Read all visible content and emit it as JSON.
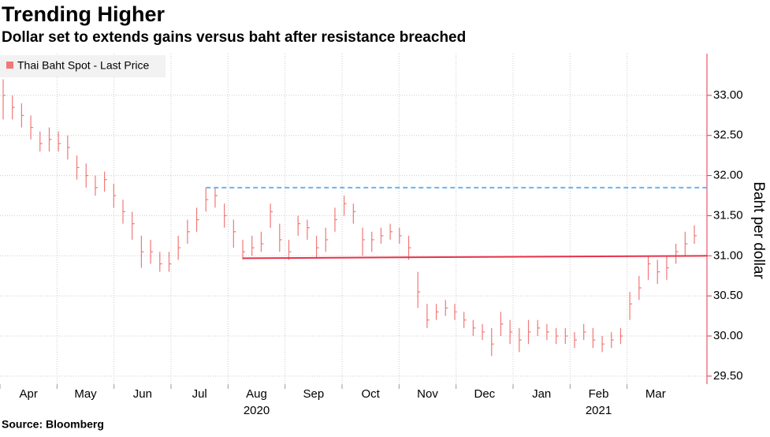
{
  "chart_data": {
    "type": "ohlc",
    "title": "Trending Higher",
    "subtitle": "Dollar set to extends gains versus baht after resistance breached",
    "source": "Source: Bloomberg",
    "y_label": "Baht per dollar",
    "series": [
      {
        "name": "Thai Baht Spot - Last Price",
        "color": "#f07878",
        "close": [
          33.0,
          32.85,
          32.75,
          32.6,
          32.4,
          32.45,
          32.4,
          32.35,
          32.1,
          32.0,
          31.85,
          31.95,
          31.75,
          31.55,
          31.4,
          31.05,
          31.05,
          30.9,
          30.9,
          31.1,
          31.3,
          31.45,
          31.7,
          31.75,
          31.5,
          31.3,
          31.05,
          31.1,
          31.15,
          31.55,
          31.2,
          31.05,
          31.4,
          31.35,
          31.1,
          31.2,
          31.45,
          31.65,
          31.55,
          31.2,
          31.2,
          31.25,
          31.3,
          31.25,
          31.1,
          30.55,
          30.2,
          30.3,
          30.35,
          30.3,
          30.2,
          30.1,
          30.05,
          29.9,
          30.15,
          30.05,
          29.95,
          30.05,
          30.1,
          30.05,
          30.0,
          30.0,
          29.95,
          30.05,
          29.95,
          29.9,
          29.95,
          30.0,
          30.4,
          30.6,
          30.9,
          30.8,
          30.85,
          31.05,
          31.15,
          31.25
        ],
        "high": [
          33.2,
          33.0,
          32.9,
          32.75,
          32.55,
          32.6,
          32.55,
          32.5,
          32.25,
          32.15,
          32.0,
          32.05,
          31.9,
          31.7,
          31.55,
          31.25,
          31.2,
          31.05,
          31.05,
          31.25,
          31.45,
          31.6,
          31.85,
          31.85,
          31.65,
          31.45,
          31.2,
          31.25,
          31.3,
          31.65,
          31.4,
          31.2,
          31.5,
          31.45,
          31.25,
          31.35,
          31.6,
          31.75,
          31.65,
          31.35,
          31.3,
          31.35,
          31.4,
          31.35,
          31.25,
          30.8,
          30.4,
          30.4,
          30.45,
          30.4,
          30.3,
          30.2,
          30.15,
          30.1,
          30.3,
          30.2,
          30.1,
          30.2,
          30.2,
          30.15,
          30.1,
          30.1,
          30.05,
          30.15,
          30.1,
          30.0,
          30.05,
          30.1,
          30.55,
          30.75,
          31.0,
          30.95,
          31.0,
          31.15,
          31.3,
          31.38
        ],
        "low": [
          32.7,
          32.7,
          32.6,
          32.45,
          32.3,
          32.3,
          32.3,
          32.2,
          31.95,
          31.85,
          31.75,
          31.8,
          31.6,
          31.4,
          31.2,
          30.85,
          30.9,
          30.8,
          30.8,
          30.95,
          31.15,
          31.3,
          31.55,
          31.6,
          31.35,
          31.1,
          30.95,
          31.0,
          31.05,
          31.35,
          31.05,
          30.95,
          31.25,
          31.2,
          30.97,
          31.05,
          31.3,
          31.5,
          31.4,
          31.0,
          31.05,
          31.15,
          31.2,
          31.15,
          30.95,
          30.35,
          30.1,
          30.2,
          30.25,
          30.2,
          30.1,
          30.0,
          29.95,
          29.75,
          30.0,
          29.9,
          29.8,
          29.9,
          30.0,
          29.95,
          29.9,
          29.9,
          29.85,
          29.95,
          29.85,
          29.8,
          29.85,
          29.9,
          30.2,
          30.45,
          30.7,
          30.65,
          30.7,
          30.9,
          31.0,
          31.15
        ]
      }
    ],
    "levels": [
      {
        "start_index": 22,
        "start": 31.85,
        "end": 31.85,
        "color": "#6ab4f0",
        "dashed": true
      },
      {
        "start_index": 26,
        "start": 30.97,
        "end": 31.0,
        "color": "#e8334a",
        "dashed": false
      }
    ],
    "months": [
      "Apr",
      "May",
      "Jun",
      "Jul",
      "Aug",
      "Sep",
      "Oct",
      "Nov",
      "Dec",
      "Jan",
      "Feb",
      "Mar"
    ],
    "years": [
      {
        "text": "2020",
        "month_index": 4
      },
      {
        "text": "2021",
        "month_index": 10
      }
    ],
    "ylim": [
      29.4,
      33.52
    ],
    "yticks": [
      {
        "value": 29.5,
        "label": "29.50"
      },
      {
        "value": 30,
        "label": "30.00"
      },
      {
        "value": 30.5,
        "label": "30.50"
      },
      {
        "value": 31,
        "label": "31.00"
      },
      {
        "value": 31.5,
        "label": "31.50"
      },
      {
        "value": 32,
        "label": "32.00"
      },
      {
        "value": 32.5,
        "label": "32.50"
      },
      {
        "value": 33,
        "label": "33.00"
      }
    ],
    "grid": true,
    "axis_color": "#e8334a"
  }
}
